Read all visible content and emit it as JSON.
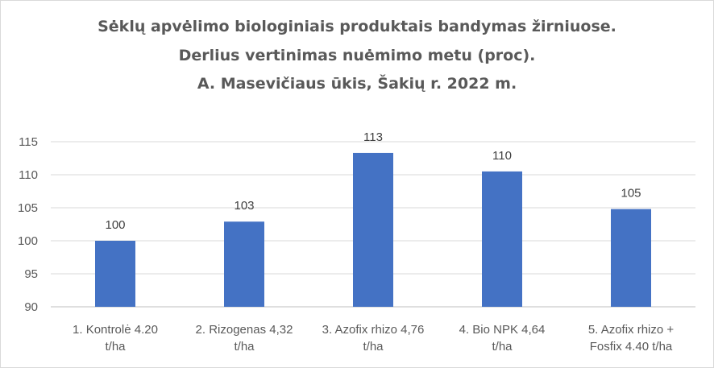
{
  "chart_data": {
    "type": "bar",
    "title_lines": [
      "Sėklų apvėlimo biologiniais produktais bandymas žirniuose.",
      "Derlius vertinimas nuėmimo metu (proc).",
      "A. Masevičiaus ūkis, Šakių r. 2022 m."
    ],
    "categories": [
      [
        "1. Kontrolė 4.20",
        "t/ha"
      ],
      [
        "2. Rizogenas 4,32",
        "t/ha"
      ],
      [
        "3. Azofix rhizo 4,76",
        "t/ha"
      ],
      [
        "4. Bio NPK 4,64",
        "t/ha"
      ],
      [
        "5. Azofix rhizo +",
        "Fosfix 4.40 t/ha"
      ]
    ],
    "values": [
      100,
      102.9,
      113.3,
      110.5,
      104.8
    ],
    "data_labels": [
      "100",
      "103",
      "113",
      "110",
      "105"
    ],
    "ylim": [
      90,
      115
    ],
    "yticks": [
      "90",
      "95",
      "100",
      "105",
      "110",
      "115"
    ],
    "xlabel": "",
    "ylabel": "",
    "grid": true,
    "legend": "none",
    "colors": {
      "bar": "#4472c4",
      "grid": "#d9d9d9",
      "text": "#595959"
    }
  }
}
